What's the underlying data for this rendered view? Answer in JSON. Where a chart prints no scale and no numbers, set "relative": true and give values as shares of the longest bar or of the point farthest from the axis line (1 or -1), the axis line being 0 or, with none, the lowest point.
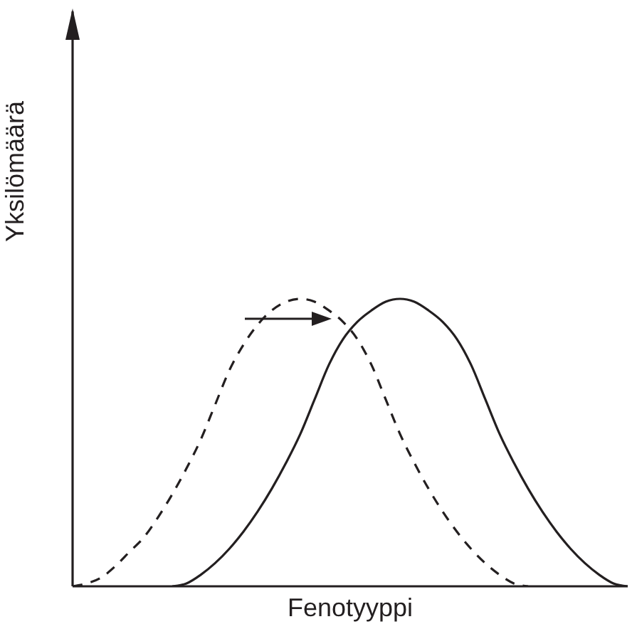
{
  "chart_data": {
    "type": "line",
    "relative": true,
    "xlabel": "Fenotyyppi",
    "ylabel": "Yksilömäärä",
    "categories": [
      null,
      null,
      null,
      null,
      null,
      null,
      null,
      null,
      null,
      null,
      null,
      null,
      null,
      null,
      null,
      null,
      null,
      null,
      null,
      null,
      null,
      null,
      null,
      null,
      null,
      null,
      null,
      null,
      null,
      null,
      null,
      null,
      null,
      null,
      null,
      null,
      null,
      null,
      null,
      null
    ],
    "series": [
      {
        "color": "#231f20",
        "line_style": "dashed",
        "values": [
          0,
          0.01,
          0.03,
          0.07,
          0.12,
          0.17,
          0.24,
          0.32,
          0.41,
          0.51,
          0.63,
          0.75,
          0.84,
          0.91,
          0.96,
          0.99,
          1,
          0.99,
          0.96,
          0.92,
          0.86,
          0.77,
          0.65,
          0.53,
          0.43,
          0.34,
          0.26,
          0.19,
          0.13,
          0.08,
          0.04,
          0.01,
          0,
          null,
          null,
          null,
          null,
          null,
          null,
          null
        ]
      },
      {
        "color": "#231f20",
        "line_style": "solid",
        "values": [
          null,
          null,
          null,
          null,
          null,
          null,
          null,
          0,
          0.01,
          0.04,
          0.08,
          0.13,
          0.19,
          0.26,
          0.34,
          0.43,
          0.53,
          0.65,
          0.77,
          0.86,
          0.92,
          0.96,
          0.99,
          1,
          0.99,
          0.96,
          0.92,
          0.86,
          0.77,
          0.65,
          0.53,
          0.43,
          0.34,
          0.26,
          0.19,
          0.13,
          0.08,
          0.04,
          0.01,
          0
        ]
      }
    ],
    "marker": "none",
    "grid": false,
    "legend": false
  }
}
